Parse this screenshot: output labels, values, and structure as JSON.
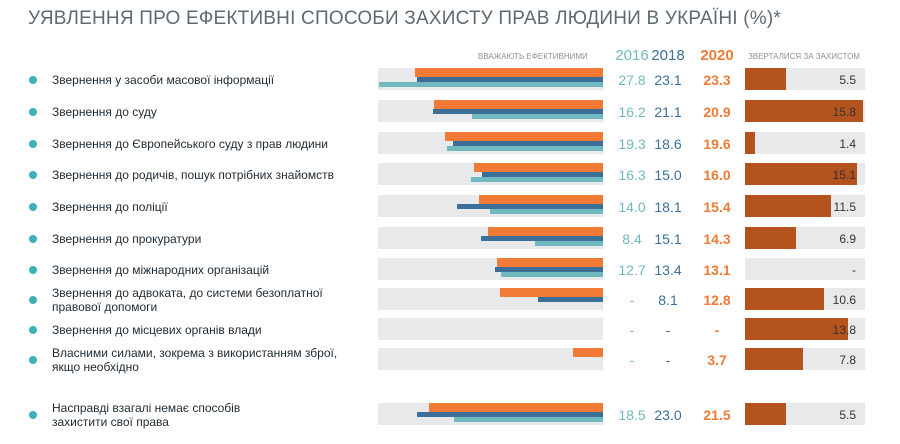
{
  "chart_data": {
    "type": "bar",
    "title": "УЯВЛЕННЯ ПРО ЕФЕКТИВНІ СПОСОБИ ЗАХИСТУ ПРАВ ЛЮДИНИ В УКРАЇНІ (%)*",
    "left_header": "ВВАЖАЮТЬ ЕФЕКТИВНИМИ",
    "categories": [
      "Звернення у засоби масової інформації",
      "Звернення до суду",
      "Звернення до Європейського суду з прав людини",
      "Звернення до родичів, пошук потрібних знайомств",
      "Звернення до поліції",
      "Звернення до прокуратури",
      "Звернення до міжнародних організацій",
      "Звернення до адвоката, до системи безоплатної правової допомоги",
      "Звернення до місцевих органів влади",
      "Власними силами, зокрема з використанням зброї, якщо необхідно",
      "Насправді взагалі немає способів захистити свої права"
    ],
    "series": [
      {
        "name": "2016",
        "color": "#72b9bf",
        "values": [
          27.8,
          16.2,
          19.3,
          16.3,
          14.0,
          8.4,
          12.7,
          null,
          null,
          null,
          18.5
        ],
        "value_labels": [
          "27.8",
          "16.2",
          "19.3",
          "16.3",
          "14.0",
          "8.4",
          "12.7",
          "-",
          "-",
          "-",
          "18.5"
        ]
      },
      {
        "name": "2018",
        "color": "#3b6f98",
        "values": [
          23.1,
          21.1,
          18.6,
          15.0,
          18.1,
          15.1,
          13.4,
          8.1,
          null,
          null,
          23.0
        ],
        "value_labels": [
          "23.1",
          "21.1",
          "18.6",
          "15.0",
          "18.1",
          "15.1",
          "13.4",
          "8.1",
          "-",
          "-",
          "23.0"
        ]
      },
      {
        "name": "2020",
        "color": "#f07a36",
        "values": [
          23.3,
          20.9,
          19.6,
          16.0,
          15.4,
          14.3,
          13.1,
          12.8,
          null,
          3.7,
          21.5
        ],
        "value_labels": [
          "23.3",
          "20.9",
          "19.6",
          "16.0",
          "15.4",
          "14.3",
          "13.1",
          "12.8",
          "-",
          "3.7",
          "21.5"
        ]
      },
      {
        "name": "ЗВЕРТАЛИСЯ ЗА ЗАХИСТОМ",
        "color": "#b4531d",
        "values": [
          5.5,
          15.8,
          1.4,
          15.1,
          11.5,
          6.9,
          null,
          10.6,
          13.8,
          7.8,
          5.5
        ],
        "value_labels": [
          "5.5",
          "15.8",
          "1.4",
          "15.1",
          "11.5",
          "6.9",
          "-",
          "10.6",
          "13.8",
          "7.8",
          "5.5"
        ]
      }
    ]
  }
}
